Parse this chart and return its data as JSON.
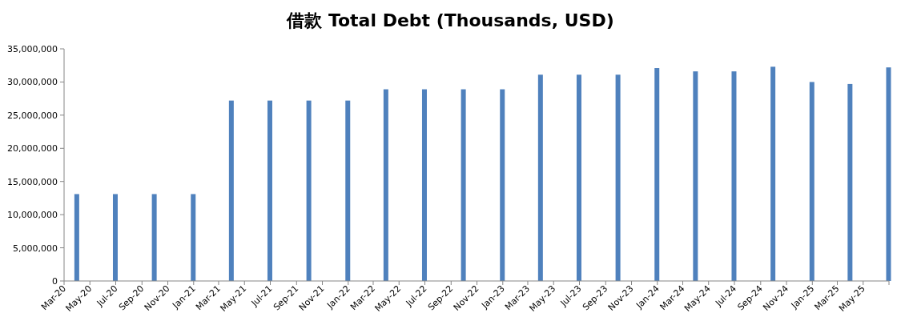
{
  "chart_data": {
    "type": "bar",
    "title": "借款 Total Debt (Thousands, USD)",
    "x": [
      "2020-03-31",
      "2020-06-30",
      "2020-09-30",
      "2020-12-31",
      "2021-03-31",
      "2021-06-30",
      "2021-09-30",
      "2021-12-31",
      "2022-03-31",
      "2022-06-30",
      "2022-09-30",
      "2022-12-31",
      "2023-03-31",
      "2023-06-30",
      "2023-09-30",
      "2023-12-31",
      "2024-03-31",
      "2024-06-30",
      "2024-09-30",
      "2024-12-31",
      "2025-03-31",
      "2025-06-30"
    ],
    "series": [
      {
        "color": "#4f81bd",
        "values": [
          13100000,
          13100000,
          13100000,
          13100000,
          27200000,
          27200000,
          27200000,
          27200000,
          28900000,
          28900000,
          28900000,
          28900000,
          31100000,
          31100000,
          31100000,
          32100000,
          31600000,
          31600000,
          32300000,
          30000000,
          29700000,
          32200000
        ]
      }
    ],
    "xlim": [
      "2020-03",
      "2025-07"
    ],
    "xticks": [
      {
        "value": "2020-03",
        "label": "Mar-20"
      },
      {
        "value": "2020-05",
        "label": "May-20"
      },
      {
        "value": "2020-07",
        "label": "Jul-20"
      },
      {
        "value": "2020-09",
        "label": "Sep-20"
      },
      {
        "value": "2020-11",
        "label": "Nov-20"
      },
      {
        "value": "2021-01",
        "label": "Jan-21"
      },
      {
        "value": "2021-03",
        "label": "Mar-21"
      },
      {
        "value": "2021-05",
        "label": "May-21"
      },
      {
        "value": "2021-07",
        "label": "Jul-21"
      },
      {
        "value": "2021-09",
        "label": "Sep-21"
      },
      {
        "value": "2021-11",
        "label": "Nov-21"
      },
      {
        "value": "2022-01",
        "label": "Jan-22"
      },
      {
        "value": "2022-03",
        "label": "Mar-22"
      },
      {
        "value": "2022-05",
        "label": "May-22"
      },
      {
        "value": "2022-07",
        "label": "Jul-22"
      },
      {
        "value": "2022-09",
        "label": "Sep-22"
      },
      {
        "value": "2022-11",
        "label": "Nov-22"
      },
      {
        "value": "2023-01",
        "label": "Jan-23"
      },
      {
        "value": "2023-03",
        "label": "Mar-23"
      },
      {
        "value": "2023-05",
        "label": "May-23"
      },
      {
        "value": "2023-07",
        "label": "Jul-23"
      },
      {
        "value": "2023-09",
        "label": "Sep-23"
      },
      {
        "value": "2023-11",
        "label": "Nov-23"
      },
      {
        "value": "2024-01",
        "label": "Jan-24"
      },
      {
        "value": "2024-03",
        "label": "Mar-24"
      },
      {
        "value": "2024-05",
        "label": "May-24"
      },
      {
        "value": "2024-07",
        "label": "Jul-24"
      },
      {
        "value": "2024-09",
        "label": "Sep-24"
      },
      {
        "value": "2024-11",
        "label": "Nov-24"
      },
      {
        "value": "2025-01",
        "label": "Jan-25"
      },
      {
        "value": "2025-03",
        "label": "Mar-25"
      },
      {
        "value": "2025-05",
        "label": "May-25"
      },
      {
        "value": "2025-07",
        "label": null
      }
    ],
    "ylim": [
      0,
      35000000
    ],
    "yticks": [
      {
        "value": 0,
        "label": "0"
      },
      {
        "value": 5000000,
        "label": "5,000,000"
      },
      {
        "value": 10000000,
        "label": "10,000,000"
      },
      {
        "value": 15000000,
        "label": "15,000,000"
      },
      {
        "value": 20000000,
        "label": "20,000,000"
      },
      {
        "value": 25000000,
        "label": "25,000,000"
      },
      {
        "value": 30000000,
        "label": "30,000,000"
      },
      {
        "value": 35000000,
        "label": "35,000,000"
      }
    ],
    "grid": false
  }
}
